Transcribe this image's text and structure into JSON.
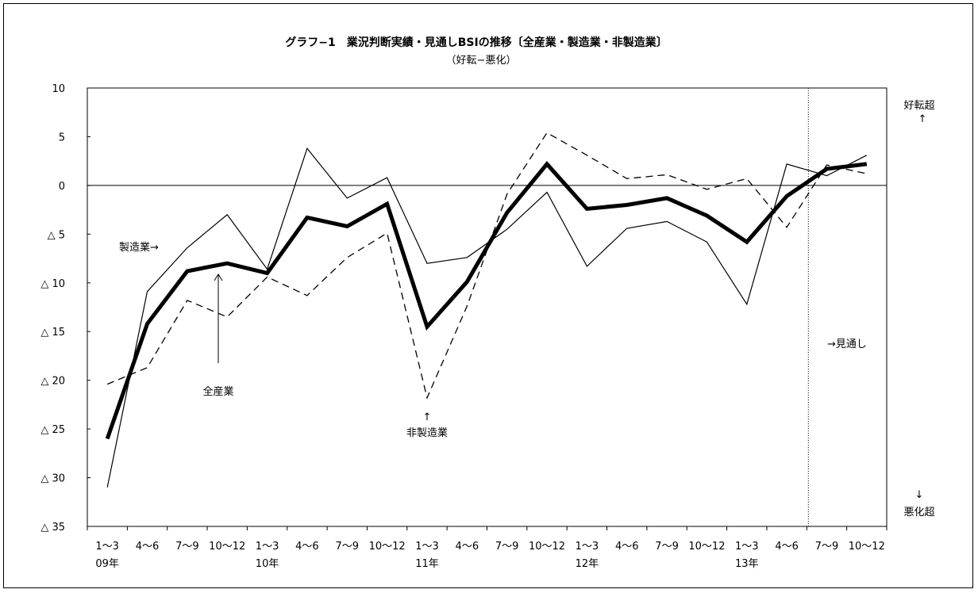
{
  "chart_data": {
    "type": "line",
    "title": "グラフ−1　業況判断実績・見通しBSIの推移〔全産業・製造業・非製造業〕",
    "subtitle": "（好転−悪化）",
    "x_labels": [
      "1～3",
      "4～6",
      "7～9",
      "10～12",
      "1～3",
      "4～6",
      "7～9",
      "10～12",
      "1～3",
      "4～6",
      "7～9",
      "10～12",
      "1～3",
      "4～6",
      "7～9",
      "10～12",
      "1～3",
      "4～6",
      "7～9",
      "10～12"
    ],
    "year_labels": [
      {
        "index": 0,
        "label": "09年"
      },
      {
        "index": 4,
        "label": "10年"
      },
      {
        "index": 8,
        "label": "11年"
      },
      {
        "index": 12,
        "label": "12年"
      },
      {
        "index": 16,
        "label": "13年"
      }
    ],
    "ylim": [
      -35,
      10
    ],
    "y_ticks": [
      10,
      5,
      0,
      -5,
      -10,
      -15,
      -20,
      -25,
      -30,
      -35
    ],
    "y_tick_labels": [
      "10",
      "5",
      "0",
      "△ 5",
      "△ 10",
      "△ 15",
      "△ 20",
      "△ 25",
      "△ 30",
      "△ 35"
    ],
    "series": [
      {
        "name": "全産業",
        "style": "thick",
        "values": [
          -26.0,
          -14.2,
          -8.8,
          -8.0,
          -9.0,
          -3.3,
          -4.2,
          -1.9,
          -14.5,
          -9.9,
          -2.8,
          2.2,
          -2.4,
          -2.0,
          -1.3,
          -3.1,
          -5.8,
          -1.1,
          1.7,
          2.2
        ]
      },
      {
        "name": "製造業",
        "style": "thin",
        "values": [
          -31.0,
          -10.9,
          -6.4,
          -3.0,
          -8.6,
          3.8,
          -1.3,
          0.8,
          -8.0,
          -7.4,
          -4.5,
          -0.7,
          -8.3,
          -4.4,
          -3.7,
          -5.8,
          -12.2,
          2.2,
          1.0,
          3.1
        ]
      },
      {
        "name": "非製造業",
        "style": "dashed",
        "values": [
          -20.4,
          -18.7,
          -11.8,
          -13.5,
          -9.4,
          -11.3,
          -7.4,
          -4.9,
          -21.8,
          -12.4,
          -0.9,
          5.4,
          3.1,
          0.7,
          1.1,
          -0.4,
          0.7,
          -4.3,
          2.1,
          1.2
        ]
      }
    ],
    "forecast_start_index": 18,
    "annotations": {
      "manufacturing": "製造業→",
      "all_industries": "全産業",
      "non_manufacturing": "非製造業",
      "up_arrow": "↑",
      "forecast": "→見通し",
      "improve_excess": "好転超",
      "improve_arrow": "↑",
      "worsen_arrow": "↓",
      "worsen_excess": "悪化超"
    },
    "grid": false,
    "legend": "none",
    "colors": {
      "lines": "#000000",
      "background": "#ffffff"
    }
  }
}
